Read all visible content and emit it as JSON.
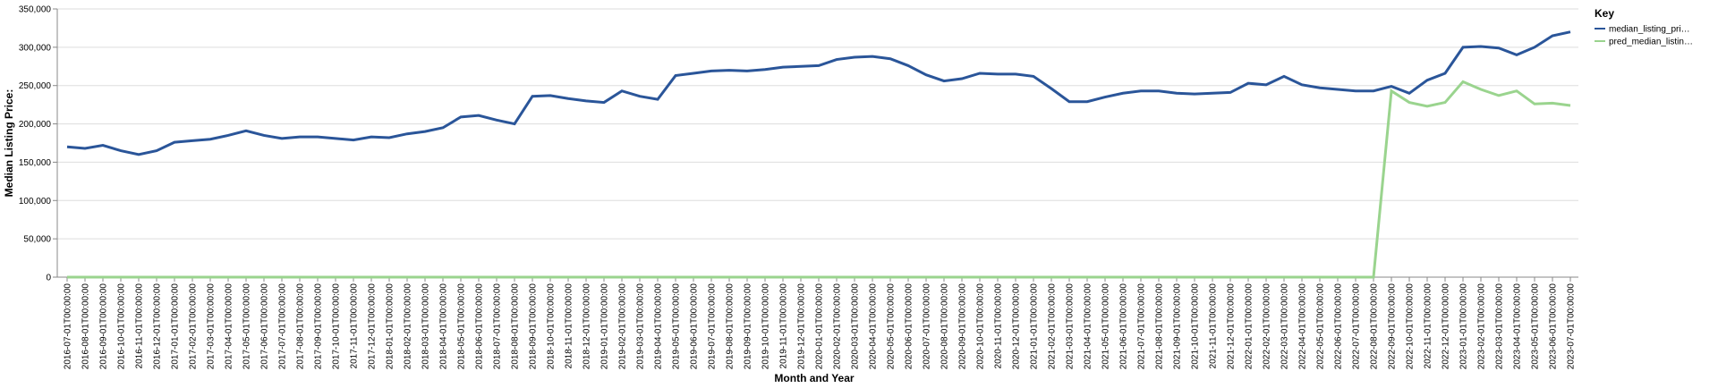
{
  "chart_data": {
    "type": "line",
    "x_label": "Month and Year",
    "y_label": "Median Listing Price:",
    "legend_title": "Key",
    "legend": "right",
    "grid": true,
    "categories": [
      "2016-07-01T00:00:00",
      "2016-08-01T00:00:00",
      "2016-09-01T00:00:00",
      "2016-10-01T00:00:00",
      "2016-11-01T00:00:00",
      "2016-12-01T00:00:00",
      "2017-01-01T00:00:00",
      "2017-02-01T00:00:00",
      "2017-03-01T00:00:00",
      "2017-04-01T00:00:00",
      "2017-05-01T00:00:00",
      "2017-06-01T00:00:00",
      "2017-07-01T00:00:00",
      "2017-08-01T00:00:00",
      "2017-09-01T00:00:00",
      "2017-10-01T00:00:00",
      "2017-11-01T00:00:00",
      "2017-12-01T00:00:00",
      "2018-01-01T00:00:00",
      "2018-02-01T00:00:00",
      "2018-03-01T00:00:00",
      "2018-04-01T00:00:00",
      "2018-05-01T00:00:00",
      "2018-06-01T00:00:00",
      "2018-07-01T00:00:00",
      "2018-08-01T00:00:00",
      "2018-09-01T00:00:00",
      "2018-10-01T00:00:00",
      "2018-11-01T00:00:00",
      "2018-12-01T00:00:00",
      "2019-01-01T00:00:00",
      "2019-02-01T00:00:00",
      "2019-03-01T00:00:00",
      "2019-04-01T00:00:00",
      "2019-05-01T00:00:00",
      "2019-06-01T00:00:00",
      "2019-07-01T00:00:00",
      "2019-08-01T00:00:00",
      "2019-09-01T00:00:00",
      "2019-10-01T00:00:00",
      "2019-11-01T00:00:00",
      "2019-12-01T00:00:00",
      "2020-01-01T00:00:00",
      "2020-02-01T00:00:00",
      "2020-03-01T00:00:00",
      "2020-04-01T00:00:00",
      "2020-05-01T00:00:00",
      "2020-06-01T00:00:00",
      "2020-07-01T00:00:00",
      "2020-08-01T00:00:00",
      "2020-09-01T00:00:00",
      "2020-10-01T00:00:00",
      "2020-11-01T00:00:00",
      "2020-12-01T00:00:00",
      "2021-01-01T00:00:00",
      "2021-02-01T00:00:00",
      "2021-03-01T00:00:00",
      "2021-04-01T00:00:00",
      "2021-05-01T00:00:00",
      "2021-06-01T00:00:00",
      "2021-07-01T00:00:00",
      "2021-08-01T00:00:00",
      "2021-09-01T00:00:00",
      "2021-10-01T00:00:00",
      "2021-11-01T00:00:00",
      "2021-12-01T00:00:00",
      "2022-01-01T00:00:00",
      "2022-02-01T00:00:00",
      "2022-03-01T00:00:00",
      "2022-04-01T00:00:00",
      "2022-05-01T00:00:00",
      "2022-06-01T00:00:00",
      "2022-07-01T00:00:00",
      "2022-08-01T00:00:00",
      "2022-09-01T00:00:00",
      "2022-10-01T00:00:00",
      "2022-11-01T00:00:00",
      "2022-12-01T00:00:00",
      "2023-01-01T00:00:00",
      "2023-02-01T00:00:00",
      "2023-03-01T00:00:00",
      "2023-04-01T00:00:00",
      "2023-05-01T00:00:00",
      "2023-06-01T00:00:00",
      "2023-07-01T00:00:00"
    ],
    "series": [
      {
        "name": "median_listing_pri…",
        "color": "#2a5599",
        "values": [
          170000,
          168000,
          172000,
          165000,
          160000,
          165000,
          176000,
          178000,
          180000,
          185000,
          191000,
          185000,
          181000,
          183000,
          183000,
          181000,
          179000,
          183000,
          182000,
          187000,
          190000,
          195000,
          209000,
          211000,
          205000,
          200000,
          236000,
          237000,
          233000,
          230000,
          228000,
          243000,
          236000,
          232000,
          263000,
          266000,
          269000,
          270000,
          269000,
          271000,
          274000,
          275000,
          276000,
          284000,
          287000,
          288000,
          285000,
          276000,
          264000,
          256000,
          259000,
          266000,
          265000,
          265000,
          262000,
          246000,
          229000,
          229000,
          235000,
          240000,
          243000,
          243000,
          240000,
          239000,
          240000,
          241000,
          253000,
          251000,
          262000,
          251000,
          247000,
          245000,
          243000,
          243000,
          249000,
          240000,
          257000,
          266000,
          300000,
          301000,
          299000,
          290000,
          300000,
          315000,
          320000
        ]
      },
      {
        "name": "pred_median_listin…",
        "color": "#9ad48e",
        "values": [
          0,
          0,
          0,
          0,
          0,
          0,
          0,
          0,
          0,
          0,
          0,
          0,
          0,
          0,
          0,
          0,
          0,
          0,
          0,
          0,
          0,
          0,
          0,
          0,
          0,
          0,
          0,
          0,
          0,
          0,
          0,
          0,
          0,
          0,
          0,
          0,
          0,
          0,
          0,
          0,
          0,
          0,
          0,
          0,
          0,
          0,
          0,
          0,
          0,
          0,
          0,
          0,
          0,
          0,
          0,
          0,
          0,
          0,
          0,
          0,
          0,
          0,
          0,
          0,
          0,
          0,
          0,
          0,
          0,
          0,
          0,
          0,
          0,
          0,
          243000,
          228000,
          223000,
          228000,
          255000,
          245000,
          237000,
          243000,
          226000,
          227000,
          224000
        ]
      }
    ],
    "ylim": [
      0,
      350000
    ],
    "yticks": [
      0,
      {
        "value": 50000,
        "label": "50,000"
      },
      {
        "value": 100000,
        "label": "100,000"
      },
      {
        "value": 150000,
        "label": "150,000"
      },
      {
        "value": 200000,
        "label": "200,000"
      },
      {
        "value": 250000,
        "label": "250,000"
      },
      {
        "value": 300000,
        "label": "300,000"
      },
      {
        "value": 350000,
        "label": "350,000"
      }
    ]
  }
}
